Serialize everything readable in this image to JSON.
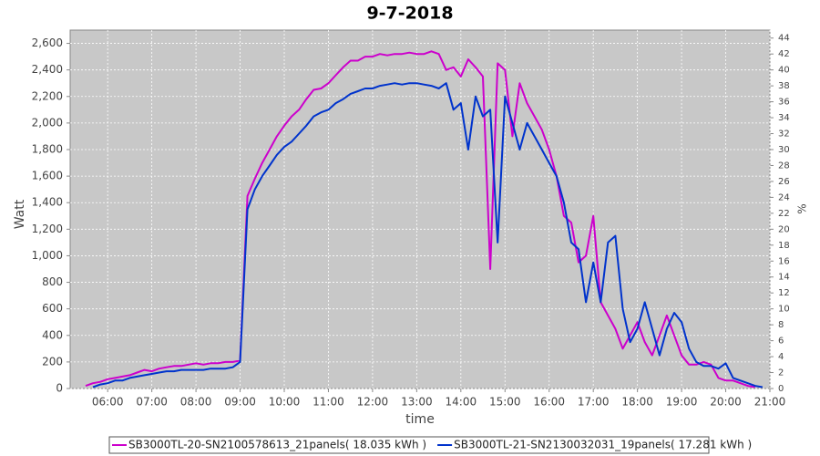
{
  "chart_data": {
    "type": "line",
    "title": "9-7-2018",
    "x_label": "time",
    "y_label": "Watt",
    "y2_label": "%",
    "x": [
      "05:30",
      "05:40",
      "05:50",
      "06:00",
      "06:10",
      "06:20",
      "06:30",
      "06:40",
      "06:50",
      "07:00",
      "07:10",
      "07:20",
      "07:30",
      "07:40",
      "07:50",
      "08:00",
      "08:10",
      "08:20",
      "08:30",
      "08:40",
      "08:50",
      "09:00",
      "09:10",
      "09:20",
      "09:30",
      "09:40",
      "09:50",
      "10:00",
      "10:10",
      "10:20",
      "10:30",
      "10:40",
      "10:50",
      "11:00",
      "11:10",
      "11:20",
      "11:30",
      "11:40",
      "11:50",
      "12:00",
      "12:10",
      "12:20",
      "12:30",
      "12:40",
      "12:50",
      "13:00",
      "13:10",
      "13:20",
      "13:30",
      "13:40",
      "13:50",
      "14:00",
      "14:10",
      "14:20",
      "14:30",
      "14:40",
      "14:50",
      "15:00",
      "15:10",
      "15:20",
      "15:30",
      "15:40",
      "15:50",
      "16:00",
      "16:10",
      "16:20",
      "16:30",
      "16:40",
      "16:50",
      "17:00",
      "17:10",
      "17:20",
      "17:30",
      "17:40",
      "17:50",
      "18:00",
      "18:10",
      "18:20",
      "18:30",
      "18:40",
      "18:50",
      "19:00",
      "19:10",
      "19:20",
      "19:30",
      "19:40",
      "19:50",
      "20:00",
      "20:10",
      "20:20",
      "20:30",
      "20:40",
      "20:50"
    ],
    "series": [
      {
        "name": "SB3000TL-20-SN2100578613_21panels( 18.035 kWh )",
        "color": "#cc00cc",
        "values": [
          20,
          40,
          50,
          70,
          80,
          90,
          100,
          120,
          140,
          130,
          150,
          160,
          170,
          170,
          180,
          190,
          180,
          190,
          190,
          200,
          200,
          210,
          1450,
          1580,
          1700,
          1800,
          1900,
          1980,
          2050,
          2100,
          2180,
          2250,
          2260,
          2300,
          2360,
          2420,
          2470,
          2470,
          2500,
          2500,
          2520,
          2510,
          2520,
          2520,
          2530,
          2520,
          2520,
          2540,
          2520,
          2400,
          2420,
          2350,
          2480,
          2420,
          2350,
          900,
          2450,
          2400,
          1900,
          2300,
          2150,
          2050,
          1950,
          1800,
          1600,
          1300,
          1250,
          950,
          1000,
          1300,
          650,
          550,
          450,
          300,
          400,
          500,
          350,
          250,
          400,
          550,
          400,
          250,
          180,
          180,
          200,
          180,
          80,
          60,
          60,
          40,
          20,
          10,
          null
        ]
      },
      {
        "name": "SB3000TL-21-SN2130032031_19panels( 17.281 kWh )",
        "color": "#0033cc",
        "values": [
          null,
          10,
          30,
          40,
          60,
          60,
          80,
          90,
          100,
          110,
          120,
          130,
          130,
          140,
          140,
          140,
          140,
          150,
          150,
          150,
          160,
          200,
          1350,
          1500,
          1600,
          1680,
          1760,
          1820,
          1860,
          1920,
          1980,
          2050,
          2080,
          2100,
          2150,
          2180,
          2220,
          2240,
          2260,
          2260,
          2280,
          2290,
          2300,
          2290,
          2300,
          2300,
          2290,
          2280,
          2260,
          2300,
          2100,
          2150,
          1800,
          2200,
          2050,
          2100,
          1100,
          2200,
          2000,
          1800,
          2000,
          1900,
          1800,
          1700,
          1600,
          1400,
          1100,
          1050,
          650,
          950,
          650,
          1100,
          1150,
          600,
          350,
          450,
          650,
          450,
          250,
          450,
          570,
          500,
          300,
          200,
          170,
          170,
          150,
          190,
          80,
          60,
          40,
          20,
          10
        ]
      }
    ],
    "xlim": [
      "05:09",
      "21:00"
    ],
    "xticks": [
      "06:00",
      "07:00",
      "08:00",
      "09:00",
      "10:00",
      "11:00",
      "12:00",
      "13:00",
      "14:00",
      "15:00",
      "16:00",
      "17:00",
      "18:00",
      "19:00",
      "20:00",
      "21:00"
    ],
    "ylim": [
      0,
      2700
    ],
    "yticks": [
      0,
      200,
      400,
      600,
      800,
      {
        "value": 1000,
        "label": "1,000"
      },
      {
        "value": 1200,
        "label": "1,200"
      },
      {
        "value": 1400,
        "label": "1,400"
      },
      {
        "value": 1600,
        "label": "1,600"
      },
      {
        "value": 1800,
        "label": "1,800"
      },
      {
        "value": 2000,
        "label": "2,000"
      },
      {
        "value": 2200,
        "label": "2,200"
      },
      {
        "value": 2400,
        "label": "2,400"
      },
      {
        "value": 2600,
        "label": "2,600"
      }
    ],
    "y2lim": [
      0,
      45
    ],
    "y2ticks": [
      0,
      2,
      4,
      6,
      8,
      10,
      12,
      14,
      16,
      18,
      20,
      22,
      24,
      26,
      28,
      30,
      32,
      34,
      36,
      38,
      40,
      42,
      44
    ],
    "grid": true,
    "legend": "bottom"
  }
}
